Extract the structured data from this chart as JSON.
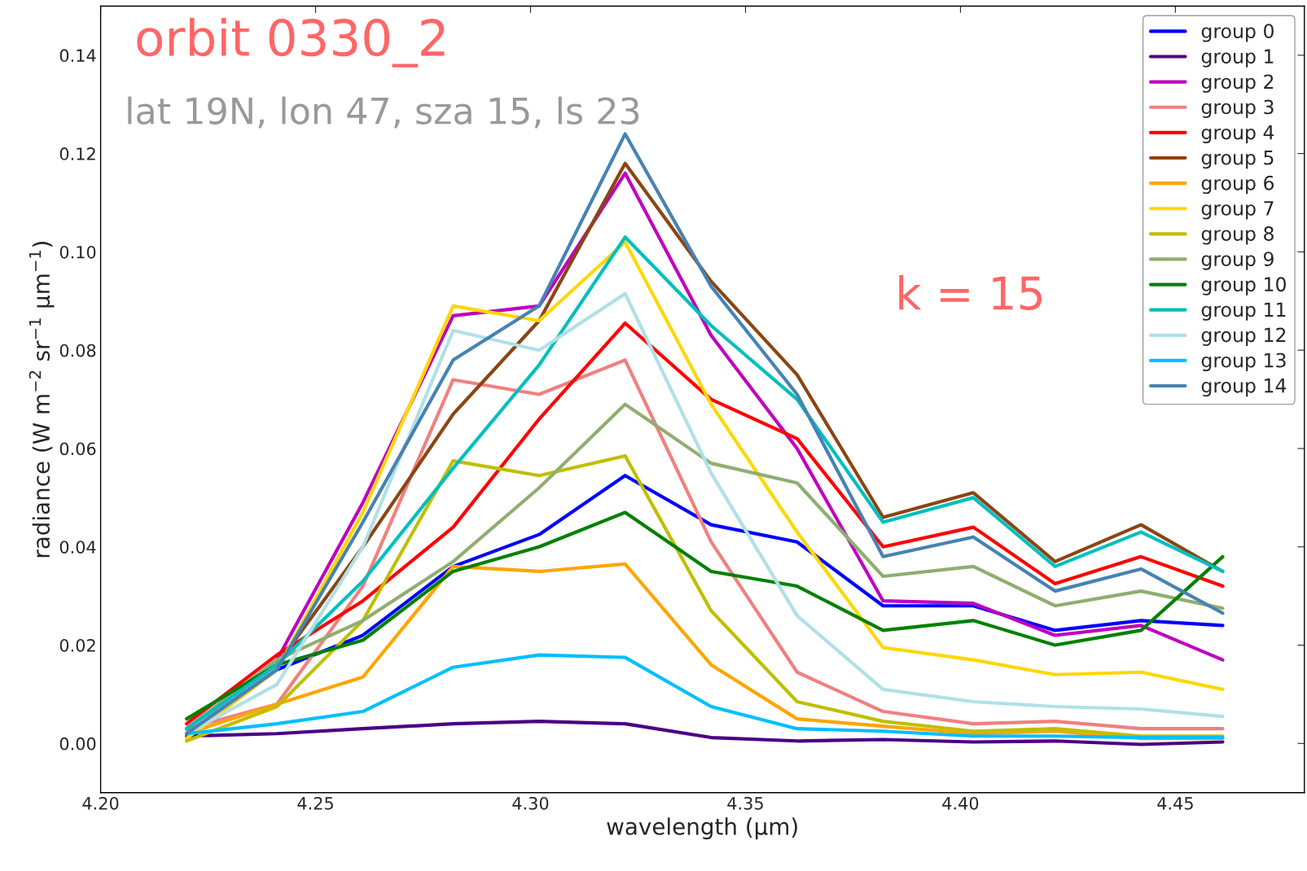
{
  "chart_data": {
    "type": "line",
    "title": "orbit 0330_2",
    "subtitle": "lat 19N, lon 47, sza 15, ls 23",
    "annotations": [
      "k = 15"
    ],
    "xlabel": "wavelength (μm)",
    "ylabel": "radiance (W m$^{−2}$ sr$^{−1}$ μm$^{−1}$)",
    "x": [
      4.22,
      4.241,
      4.261,
      4.282,
      4.302,
      4.322,
      4.342,
      4.362,
      4.382,
      4.403,
      4.422,
      4.442,
      4.461
    ],
    "xlim": [
      4.2,
      4.48
    ],
    "ylim": [
      -0.01,
      0.15
    ],
    "xticks": [
      {
        "value": 4.2,
        "label": "4.20"
      },
      {
        "value": 4.25,
        "label": "4.25"
      },
      {
        "value": 4.3,
        "label": "4.30"
      },
      {
        "value": 4.35,
        "label": "4.35"
      },
      {
        "value": 4.4,
        "label": "4.40"
      },
      {
        "value": 4.45,
        "label": "4.45"
      }
    ],
    "yticks": [
      {
        "value": 0.0,
        "label": "0.00"
      },
      {
        "value": 0.02,
        "label": "0.02"
      },
      {
        "value": 0.04,
        "label": "0.04"
      },
      {
        "value": 0.06,
        "label": "0.06"
      },
      {
        "value": 0.08,
        "label": "0.08"
      },
      {
        "value": 0.1,
        "label": "0.10"
      },
      {
        "value": 0.12,
        "label": "0.12"
      },
      {
        "value": 0.14,
        "label": "0.14"
      }
    ],
    "grid": false,
    "legend": "top right",
    "marker": "none",
    "line_style": "solid",
    "series": [
      {
        "name": "group 0",
        "color": "#0000ff",
        "values": [
          0.002,
          0.015,
          0.022,
          0.036,
          0.0425,
          0.0545,
          0.0445,
          0.041,
          0.028,
          0.028,
          0.023,
          0.025,
          0.024
        ]
      },
      {
        "name": "group 1",
        "color": "#4b0082",
        "values": [
          0.0015,
          0.002,
          0.003,
          0.004,
          0.0045,
          0.004,
          0.0012,
          0.0005,
          0.0008,
          0.0003,
          0.0005,
          -0.0002,
          0.0003
        ]
      },
      {
        "name": "group 2",
        "color": "#bf00bf",
        "values": [
          0.003,
          0.017,
          0.049,
          0.087,
          0.089,
          0.116,
          0.083,
          0.06,
          0.029,
          0.0285,
          0.022,
          0.024,
          0.017
        ]
      },
      {
        "name": "group 3",
        "color": "#f08080",
        "values": [
          0.003,
          0.008,
          0.032,
          0.074,
          0.071,
          0.078,
          0.041,
          0.0145,
          0.0065,
          0.004,
          0.0045,
          0.003,
          0.003
        ]
      },
      {
        "name": "group 4",
        "color": "#ff0000",
        "values": [
          0.004,
          0.018,
          0.029,
          0.044,
          0.066,
          0.0855,
          0.07,
          0.062,
          0.04,
          0.044,
          0.0325,
          0.038,
          0.032
        ]
      },
      {
        "name": "group 5",
        "color": "#8b4513",
        "values": [
          0.003,
          0.016,
          0.04,
          0.067,
          0.086,
          0.118,
          0.094,
          0.075,
          0.046,
          0.051,
          0.037,
          0.0445,
          0.035
        ]
      },
      {
        "name": "group 6",
        "color": "#ffa500",
        "values": [
          0.002,
          0.008,
          0.0135,
          0.036,
          0.035,
          0.0365,
          0.016,
          0.005,
          0.0035,
          0.002,
          0.0025,
          0.001,
          0.001
        ]
      },
      {
        "name": "group 7",
        "color": "#ffd700",
        "values": [
          0.001,
          0.015,
          0.047,
          0.089,
          0.086,
          0.102,
          0.069,
          0.043,
          0.0195,
          0.017,
          0.014,
          0.0145,
          0.011
        ]
      },
      {
        "name": "group 8",
        "color": "#bfbf00",
        "values": [
          0.0005,
          0.0075,
          0.025,
          0.0575,
          0.0545,
          0.0585,
          0.027,
          0.0085,
          0.0045,
          0.0025,
          0.003,
          0.0015,
          0.0015
        ]
      },
      {
        "name": "group 9",
        "color": "#8fae6f",
        "values": [
          0.003,
          0.017,
          0.025,
          0.037,
          0.052,
          0.069,
          0.057,
          0.053,
          0.034,
          0.036,
          0.028,
          0.031,
          0.0275
        ]
      },
      {
        "name": "group 10",
        "color": "#008000",
        "values": [
          0.005,
          0.016,
          0.021,
          0.035,
          0.04,
          0.047,
          0.035,
          0.032,
          0.023,
          0.025,
          0.02,
          0.023,
          0.038
        ]
      },
      {
        "name": "group 11",
        "color": "#00bfbf",
        "values": [
          0.003,
          0.016,
          0.033,
          0.056,
          0.077,
          0.103,
          0.085,
          0.07,
          0.045,
          0.05,
          0.036,
          0.043,
          0.035
        ]
      },
      {
        "name": "group 12",
        "color": "#b0e0e6",
        "values": [
          0.002,
          0.012,
          0.04,
          0.084,
          0.08,
          0.0915,
          0.055,
          0.026,
          0.011,
          0.0085,
          0.0075,
          0.007,
          0.0055
        ]
      },
      {
        "name": "group 13",
        "color": "#00bfff",
        "values": [
          0.002,
          0.004,
          0.0065,
          0.0155,
          0.018,
          0.0175,
          0.0075,
          0.003,
          0.0025,
          0.0015,
          0.0015,
          0.0012,
          0.0012
        ]
      },
      {
        "name": "group 14",
        "color": "#4682b4",
        "values": [
          0.002,
          0.015,
          0.045,
          0.078,
          0.089,
          0.124,
          0.093,
          0.071,
          0.038,
          0.042,
          0.031,
          0.0355,
          0.0265
        ]
      }
    ]
  }
}
